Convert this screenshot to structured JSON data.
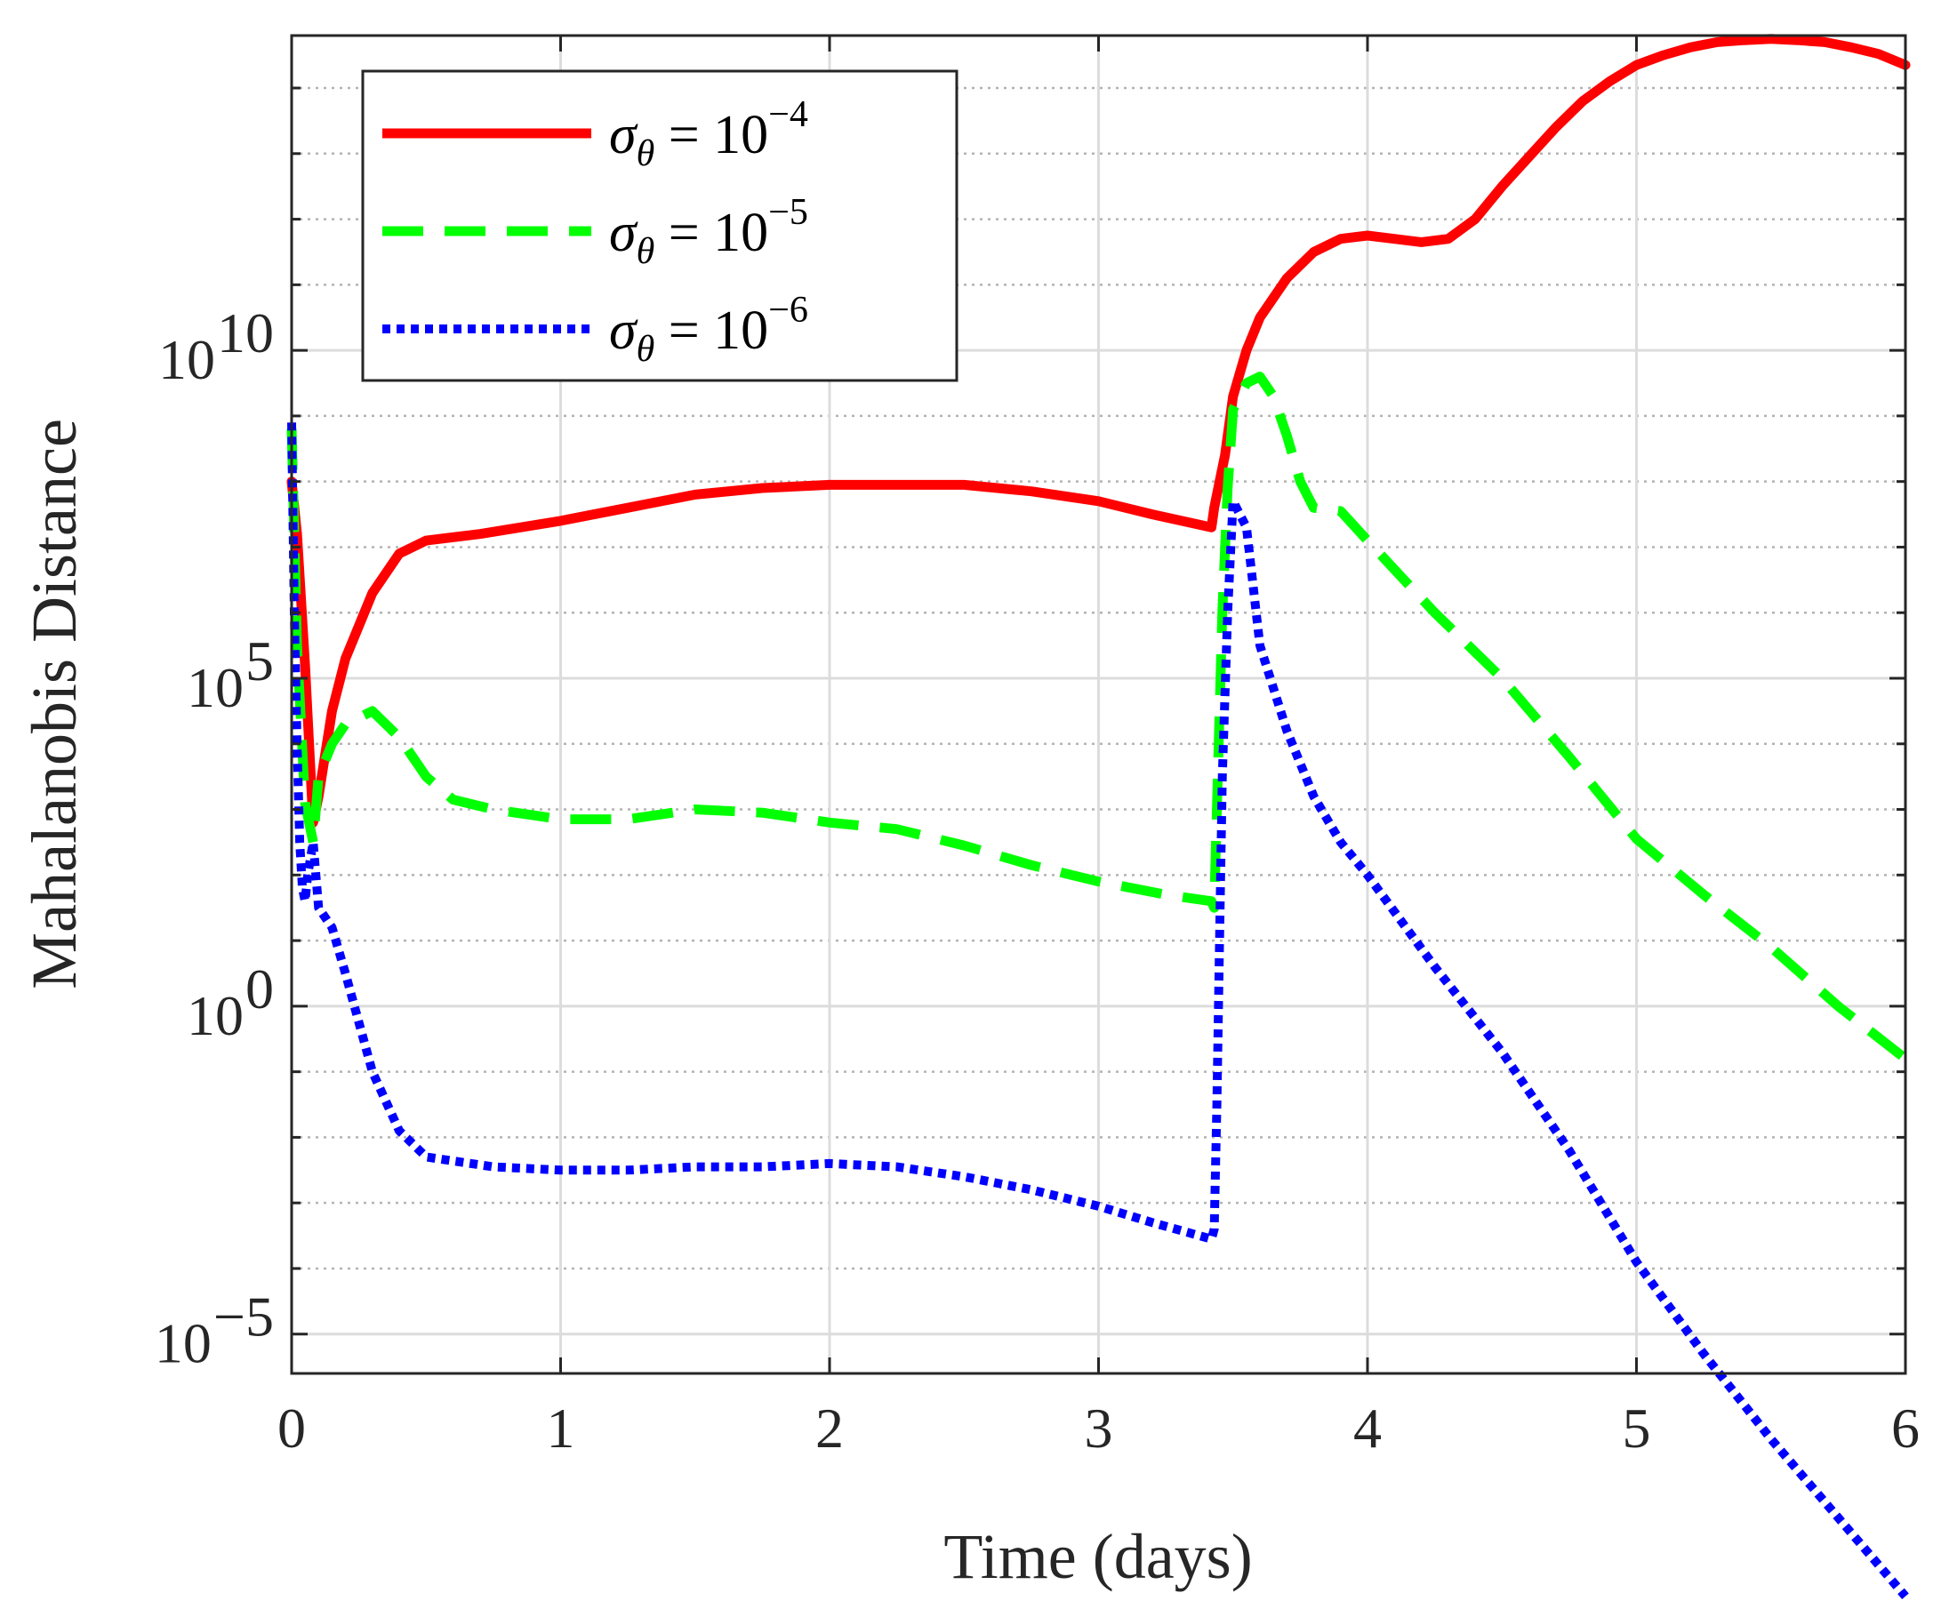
{
  "chart_data": {
    "type": "line",
    "title": "",
    "xlabel": "Time (days)",
    "ylabel": "Mahalanobis Distance",
    "xlim": [
      0,
      6
    ],
    "ylim_log10": [
      -5.6,
      14.8
    ],
    "yscale": "log",
    "grid": true,
    "legend_position": "top-left",
    "x_ticks": [
      0,
      1,
      2,
      3,
      4,
      5,
      6
    ],
    "x_tick_labels": [
      "0",
      "1",
      "2",
      "3",
      "4",
      "5",
      "6"
    ],
    "y_ticks_log10": [
      -5,
      0,
      5,
      10
    ],
    "y_tick_labels": [
      {
        "base": "10",
        "exp": "−5"
      },
      {
        "base": "10",
        "exp": "0"
      },
      {
        "base": "10",
        "exp": "5"
      },
      {
        "base": "10",
        "exp": "10"
      }
    ],
    "series": [
      {
        "name": "σθ = 10⁻⁴",
        "legend": {
          "sym": "σ",
          "sub": "θ",
          "eq": " = 10",
          "exp": "−4"
        },
        "color": "#ff0000",
        "style": "solid",
        "x": [
          0,
          0.02,
          0.05,
          0.08,
          0.1,
          0.15,
          0.2,
          0.3,
          0.4,
          0.5,
          0.7,
          1.0,
          1.25,
          1.5,
          1.75,
          2.0,
          2.2,
          2.5,
          2.75,
          3.0,
          3.2,
          3.42,
          3.43,
          3.45,
          3.47,
          3.5,
          3.55,
          3.6,
          3.7,
          3.8,
          3.9,
          4.0,
          4.1,
          4.2,
          4.3,
          4.4,
          4.5,
          4.6,
          4.7,
          4.8,
          4.9,
          5.0,
          5.1,
          5.2,
          5.3,
          5.4,
          5.5,
          5.6,
          5.7,
          5.8,
          5.9,
          6.0
        ],
        "y": [
          8.0,
          7.2,
          5.2,
          2.8,
          3.2,
          4.5,
          5.3,
          6.3,
          6.9,
          7.1,
          7.2,
          7.4,
          7.6,
          7.8,
          7.9,
          7.95,
          7.95,
          7.95,
          7.85,
          7.7,
          7.5,
          7.3,
          7.6,
          8.0,
          8.4,
          9.3,
          10.0,
          10.5,
          11.1,
          11.5,
          11.7,
          11.75,
          11.7,
          11.65,
          11.7,
          12.0,
          12.5,
          12.95,
          13.4,
          13.8,
          14.1,
          14.35,
          14.5,
          14.62,
          14.7,
          14.73,
          14.75,
          14.73,
          14.7,
          14.62,
          14.52,
          14.35
        ]
      },
      {
        "name": "σθ = 10⁻⁵",
        "legend": {
          "sym": "σ",
          "sub": "θ",
          "eq": " = 10",
          "exp": "−5"
        },
        "color": "#00ff00",
        "style": "dashed",
        "x": [
          0,
          0.02,
          0.05,
          0.08,
          0.1,
          0.15,
          0.2,
          0.3,
          0.4,
          0.5,
          0.6,
          0.75,
          1.0,
          1.25,
          1.5,
          1.75,
          2.0,
          2.25,
          2.5,
          2.75,
          3.0,
          3.25,
          3.42,
          3.43,
          3.44,
          3.46,
          3.48,
          3.5,
          3.55,
          3.6,
          3.65,
          3.7,
          3.75,
          3.8,
          3.9,
          4.0,
          4.25,
          4.5,
          4.75,
          5.0,
          5.25,
          5.5,
          5.75,
          6.0
        ],
        "y": [
          8.8,
          5.5,
          3.1,
          2.5,
          3.5,
          4.0,
          4.3,
          4.5,
          4.1,
          3.5,
          3.15,
          3.0,
          2.85,
          2.85,
          3.0,
          2.95,
          2.8,
          2.7,
          2.45,
          2.15,
          1.9,
          1.7,
          1.6,
          1.5,
          3.0,
          6.0,
          7.9,
          9.1,
          9.5,
          9.6,
          9.3,
          8.7,
          8.0,
          7.6,
          7.55,
          7.1,
          6.0,
          5.0,
          3.8,
          2.55,
          1.7,
          0.9,
          0.0,
          -0.8
        ]
      },
      {
        "name": "σθ = 10⁻⁶",
        "legend": {
          "sym": "σ",
          "sub": "θ",
          "eq": " = 10",
          "exp": "−6"
        },
        "color": "#0000ff",
        "style": "dotted",
        "x": [
          0,
          0.01,
          0.02,
          0.03,
          0.04,
          0.05,
          0.06,
          0.08,
          0.1,
          0.15,
          0.2,
          0.3,
          0.4,
          0.5,
          0.75,
          1.0,
          1.25,
          1.5,
          1.75,
          2.0,
          2.25,
          2.5,
          2.75,
          3.0,
          3.2,
          3.42,
          3.43,
          3.44,
          3.45,
          3.46,
          3.48,
          3.5,
          3.55,
          3.6,
          3.7,
          3.8,
          3.9,
          4.0,
          4.25,
          4.5,
          4.75,
          5.0,
          5.25,
          5.5,
          5.75,
          6.0
        ],
        "y": [
          8.9,
          6.0,
          4.0,
          2.5,
          1.8,
          1.6,
          2.0,
          2.5,
          1.5,
          1.2,
          0.5,
          -1.0,
          -1.9,
          -2.3,
          -2.45,
          -2.5,
          -2.5,
          -2.45,
          -2.45,
          -2.4,
          -2.45,
          -2.6,
          -2.8,
          -3.05,
          -3.3,
          -3.55,
          -3.4,
          -1.5,
          1.0,
          3.5,
          6.0,
          7.7,
          7.3,
          5.5,
          4.2,
          3.2,
          2.5,
          2.0,
          0.6,
          -0.7,
          -2.2,
          -3.9,
          -5.3,
          -6.6,
          -7.8,
          -9.0
        ]
      }
    ]
  }
}
